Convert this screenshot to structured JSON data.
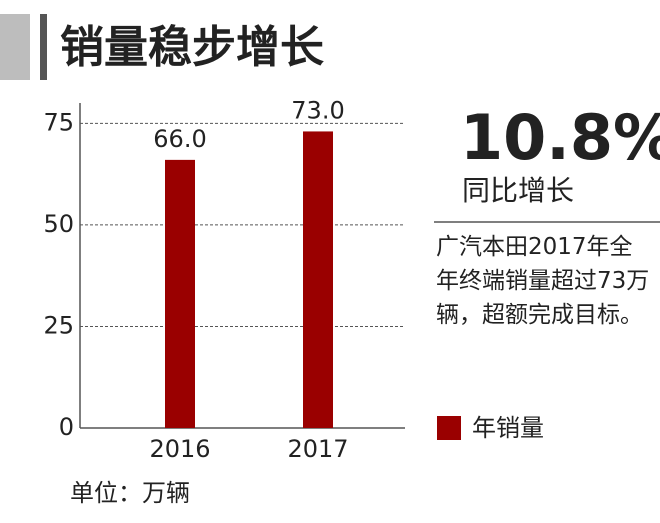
{
  "chart_data": {
    "type": "bar",
    "title": "销量稳步增长",
    "categories": [
      "2016",
      "2017"
    ],
    "series": [
      {
        "name": "年销量",
        "color": "#9a0000",
        "values": [
          66,
          73
        ],
        "value_labels": [
          "66.0",
          "73.0"
        ]
      }
    ],
    "ylim": [
      0,
      80
    ],
    "yticks": [
      0,
      25,
      50,
      75
    ],
    "grid": true,
    "unit_label": "单位：万辆",
    "annotations": {
      "highlight": "10.8%",
      "highlight_label": "同比增长",
      "note": "广汽本田2017年全年终端销量超过73万辆，超额完成目标。"
    }
  }
}
